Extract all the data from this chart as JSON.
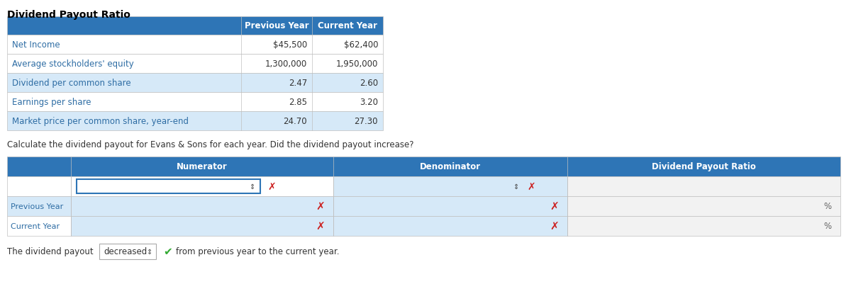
{
  "title": "Dividend Payout Ratio",
  "title_fontsize": 10,
  "header_bg": "#2E75B6",
  "header_fg": "#FFFFFF",
  "row_bg_white": "#FFFFFF",
  "row_bg_blue_light": "#D6E9F8",
  "row_bg_gray_light": "#F2F2F2",
  "border_color": "#C0C0C0",
  "blue_text": "#2E6DA4",
  "dark_text": "#333333",
  "top_table": {
    "rows": [
      [
        "Net Income",
        "$45,500",
        "$62,400"
      ],
      [
        "Average stockholders' equity",
        "1,300,000",
        "1,950,000"
      ],
      [
        "Dividend per common share",
        "2.47",
        "2.60"
      ],
      [
        "Earnings per share",
        "2.85",
        "3.20"
      ],
      [
        "Market price per common share, year-end",
        "24.70",
        "27.30"
      ]
    ],
    "row_bgs": [
      "#FFFFFF",
      "#FFFFFF",
      "#D6E9F8",
      "#FFFFFF",
      "#D6E9F8"
    ]
  },
  "question_text": "Calculate the dividend payout for Evans & Sons for each year. Did the dividend payout increase?",
  "footer_text": "The dividend payout",
  "footer_answer": "decreased",
  "footer_suffix": "from previous year to the current year."
}
